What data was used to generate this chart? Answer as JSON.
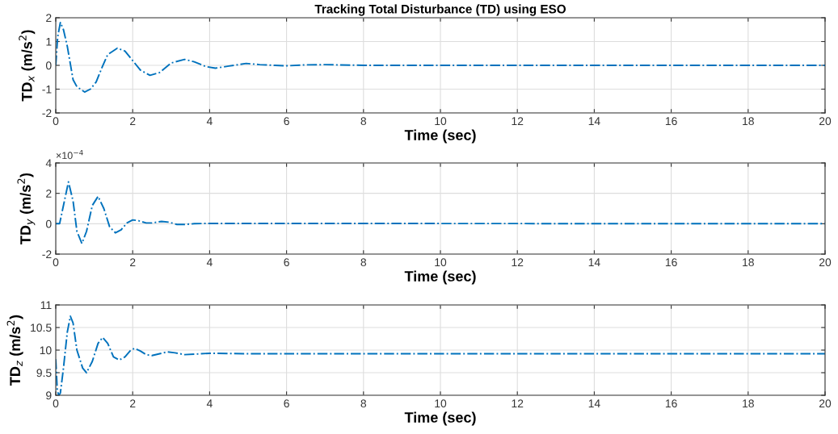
{
  "chart_data": [
    {
      "type": "line",
      "title": "Tracking Total Disturbance (TD) using ESO",
      "xlabel": "Time (sec)",
      "ylabel": "TD$_{x}$ (m/s$^{2}$)",
      "xlim": [
        0,
        20
      ],
      "xticks": [
        0,
        2,
        4,
        6,
        8,
        10,
        12,
        14,
        16,
        18,
        20
      ],
      "ylim": [
        -2,
        2
      ],
      "yticks": [
        -2,
        -1,
        0,
        1,
        2
      ],
      "grid": true,
      "line_style": "dashdot",
      "marker": "none",
      "series": [
        {
          "color": "#0072bd",
          "x": [
            0,
            0.05,
            0.12,
            0.2,
            0.3,
            0.45,
            0.55,
            0.75,
            0.9,
            1.05,
            1.2,
            1.35,
            1.6,
            1.8,
            2.0,
            2.2,
            2.45,
            2.7,
            3.0,
            3.35,
            3.6,
            3.9,
            4.15,
            4.5,
            4.95,
            5.3,
            5.7,
            6.0,
            6.5,
            7.0,
            8.0,
            10.0,
            20.0
          ],
          "values": [
            0,
            1.2,
            1.8,
            1.5,
            0.8,
            -0.6,
            -0.9,
            -1.12,
            -1.0,
            -0.7,
            -0.1,
            0.45,
            0.72,
            0.6,
            0.2,
            -0.2,
            -0.42,
            -0.3,
            0.1,
            0.25,
            0.15,
            -0.05,
            -0.12,
            -0.03,
            0.08,
            0.03,
            0,
            -0.02,
            0.02,
            0.03,
            0,
            0,
            0
          ]
        }
      ]
    },
    {
      "type": "line",
      "xlabel": "Time (sec)",
      "ylabel": "TD$_{y}$ (m/s$^{2}$)",
      "annotations": [
        "×10$^{−4}$"
      ],
      "xlim": [
        0,
        20
      ],
      "xticks": [
        0,
        2,
        4,
        6,
        8,
        10,
        12,
        14,
        16,
        18,
        20
      ],
      "ylim": [
        -2,
        4
      ],
      "yticks": [
        -2,
        0,
        2,
        4
      ],
      "grid": true,
      "line_style": "dashdot",
      "marker": "none",
      "series": [
        {
          "color": "#0072bd",
          "x": [
            0,
            0.1,
            0.2,
            0.33,
            0.45,
            0.55,
            0.68,
            0.8,
            0.95,
            1.1,
            1.25,
            1.4,
            1.55,
            1.7,
            1.85,
            2.0,
            2.15,
            2.35,
            2.5,
            2.75,
            2.95,
            3.15,
            3.35,
            3.6,
            4.0,
            20.0
          ],
          "values": [
            0,
            0,
            1.2,
            2.75,
            1.5,
            -0.5,
            -1.3,
            -0.5,
            1.2,
            1.8,
            1.0,
            -0.2,
            -0.6,
            -0.4,
            0.05,
            0.25,
            0.2,
            0.05,
            0.05,
            0.15,
            0.1,
            -0.05,
            -0.05,
            0,
            0.02,
            0
          ]
        }
      ]
    },
    {
      "type": "line",
      "xlabel": "Time (sec)",
      "ylabel": "TD$_{z}$ (m/s$^{2}$)",
      "xlim": [
        0,
        20
      ],
      "xticks": [
        0,
        2,
        4,
        6,
        8,
        10,
        12,
        14,
        16,
        18,
        20
      ],
      "ylim": [
        9,
        11
      ],
      "yticks": [
        9,
        9.5,
        10,
        10.5,
        11
      ],
      "grid": true,
      "line_style": "dashdot",
      "marker": "none",
      "series": [
        {
          "color": "#0072bd",
          "x": [
            0,
            0.04,
            0.08,
            0.12,
            0.2,
            0.3,
            0.38,
            0.45,
            0.55,
            0.7,
            0.8,
            0.95,
            1.1,
            1.22,
            1.35,
            1.5,
            1.65,
            1.8,
            1.95,
            2.05,
            2.2,
            2.35,
            2.5,
            2.7,
            2.9,
            3.1,
            3.35,
            3.6,
            4.0,
            5.0,
            20.0
          ],
          "values": [
            9.8,
            9.1,
            9.0,
            9.05,
            9.6,
            10.4,
            10.75,
            10.6,
            10.0,
            9.6,
            9.5,
            9.75,
            10.15,
            10.28,
            10.15,
            9.85,
            9.78,
            9.85,
            10.0,
            10.04,
            9.98,
            9.9,
            9.88,
            9.92,
            9.96,
            9.94,
            9.9,
            9.91,
            9.93,
            9.92,
            9.92
          ]
        }
      ]
    }
  ]
}
